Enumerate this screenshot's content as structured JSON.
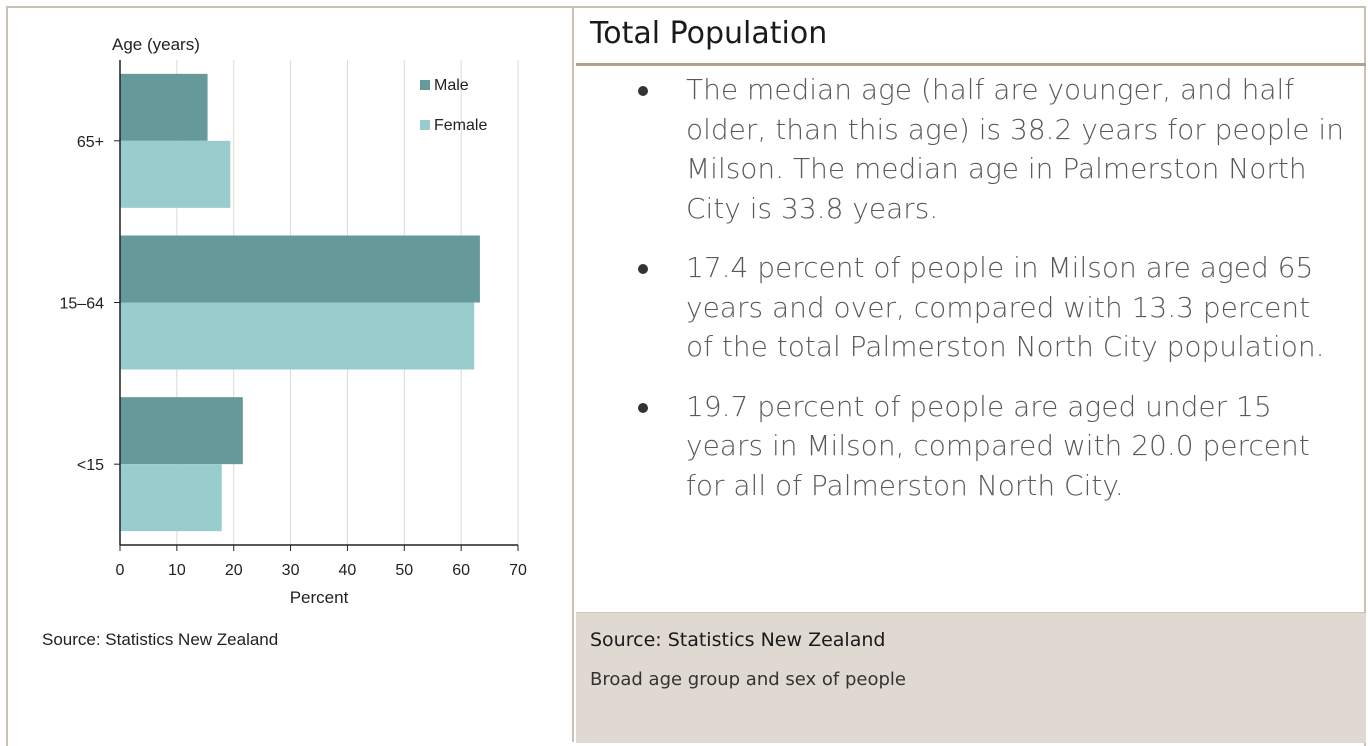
{
  "chart_data": {
    "type": "bar",
    "orientation": "horizontal",
    "categories": [
      "65+",
      "15–64",
      "<15"
    ],
    "series": [
      {
        "name": "Male",
        "values": [
          15.4,
          63.3,
          21.6
        ],
        "color": "#669999"
      },
      {
        "name": "Female",
        "values": [
          19.4,
          62.3,
          17.9
        ],
        "color": "#99cccc"
      }
    ],
    "xlabel": "Percent",
    "ylabel": "Age (years)",
    "xlim": [
      0,
      70
    ],
    "xticks": [
      "0",
      "10",
      "20",
      "30",
      "40",
      "50",
      "60",
      "70"
    ],
    "grid": true,
    "legend": "top-right",
    "source": "Source: Statistics New Zealand"
  },
  "panel": {
    "title": "Total Population",
    "bullets": [
      "The median age (half are younger, and half older, than this age) is 38.2 years for people in Milson. The median age in Palmerston North City is 33.8 years.",
      "17.4 percent of people in Milson are aged 65 years and over, compared with 13.3 percent of the total Palmerston North City population.",
      "19.7 percent of people are aged under 15 years in Milson, compared with 20.0 percent for all of Palmerston North City."
    ],
    "footer_source": "Source: Statistics New Zealand",
    "footer_caption": "Broad age group and sex of people"
  },
  "colors": {
    "border": "#c9bfb3",
    "rule": "#b29f8c",
    "footer_bg": "#e0d9d1"
  }
}
